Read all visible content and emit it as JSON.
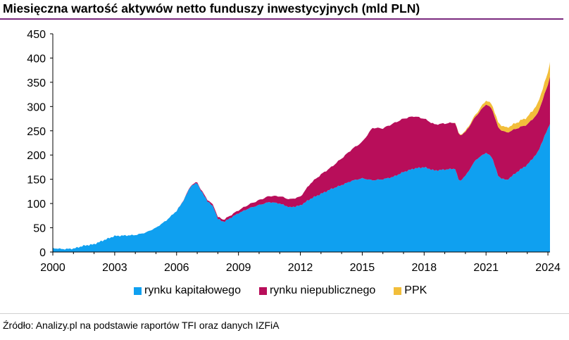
{
  "title": "Miesięczna wartość aktywów netto funduszy inwestycyjnych (mld PLN)",
  "source": "Źródło: Analizy.pl na podstawie raportów TFI oraz danych IZFiA",
  "colors": {
    "rynku_kapitalowego": "#0fa0f0",
    "rynku_niepublicznego": "#b80e5a",
    "ppk": "#f2be3a",
    "title_rule": "#7a2a7e"
  },
  "chart_data": {
    "type": "area",
    "stacked": true,
    "title": "Miesięczna wartość aktywów netto funduszy inwestycyjnych (mld PLN)",
    "xlabel": "",
    "ylabel": "",
    "xlim": [
      2000,
      2024.1
    ],
    "ylim": [
      0,
      450
    ],
    "yticks": [
      "0",
      "50",
      "100",
      "150",
      "200",
      "250",
      "300",
      "350",
      "400",
      "450"
    ],
    "xticks": [
      "2000",
      "2003",
      "2006",
      "2009",
      "2012",
      "2015",
      "2018",
      "2021",
      "2024"
    ],
    "grid": false,
    "legend_position": "bottom",
    "series": [
      {
        "name": "rynku kapitałowego",
        "color": "#0fa0f0",
        "points": [
          [
            2000,
            8
          ],
          [
            2000.5,
            6
          ],
          [
            2001,
            7
          ],
          [
            2001.5,
            13
          ],
          [
            2002,
            16
          ],
          [
            2002.5,
            25
          ],
          [
            2003,
            33
          ],
          [
            2003.5,
            34
          ],
          [
            2004,
            35
          ],
          [
            2004.5,
            40
          ],
          [
            2005,
            50
          ],
          [
            2005.5,
            65
          ],
          [
            2006,
            85
          ],
          [
            2006.25,
            100
          ],
          [
            2006.5,
            120
          ],
          [
            2006.7,
            137
          ],
          [
            2007,
            142
          ],
          [
            2007.2,
            125
          ],
          [
            2007.5,
            105
          ],
          [
            2007.8,
            92
          ],
          [
            2008,
            68
          ],
          [
            2008.3,
            62
          ],
          [
            2008.6,
            70
          ],
          [
            2009,
            80
          ],
          [
            2009.5,
            90
          ],
          [
            2010,
            97
          ],
          [
            2010.5,
            103
          ],
          [
            2011,
            100
          ],
          [
            2011.5,
            92
          ],
          [
            2012,
            96
          ],
          [
            2012.5,
            110
          ],
          [
            2013,
            120
          ],
          [
            2013.5,
            130
          ],
          [
            2014,
            138
          ],
          [
            2014.5,
            147
          ],
          [
            2015,
            152
          ],
          [
            2015.5,
            148
          ],
          [
            2016,
            150
          ],
          [
            2016.5,
            155
          ],
          [
            2017,
            165
          ],
          [
            2017.5,
            172
          ],
          [
            2018,
            175
          ],
          [
            2018.5,
            168
          ],
          [
            2019,
            170
          ],
          [
            2019.5,
            172
          ],
          [
            2019.7,
            145
          ],
          [
            2020,
            157
          ],
          [
            2020.5,
            190
          ],
          [
            2021,
            205
          ],
          [
            2021.3,
            195
          ],
          [
            2021.6,
            155
          ],
          [
            2022,
            148
          ],
          [
            2022.5,
            165
          ],
          [
            2023,
            180
          ],
          [
            2023.5,
            205
          ],
          [
            2024,
            255
          ],
          [
            2024.1,
            265
          ]
        ]
      },
      {
        "name": "rynku niepublicznego",
        "color": "#b80e5a",
        "points": [
          [
            2000,
            0
          ],
          [
            2005,
            0
          ],
          [
            2006,
            0
          ],
          [
            2007,
            2
          ],
          [
            2008,
            4
          ],
          [
            2009,
            6
          ],
          [
            2010,
            10
          ],
          [
            2011,
            15
          ],
          [
            2012,
            18
          ],
          [
            2012.5,
            32
          ],
          [
            2013,
            40
          ],
          [
            2013.5,
            45
          ],
          [
            2014,
            55
          ],
          [
            2014.5,
            65
          ],
          [
            2015,
            75
          ],
          [
            2015.5,
            108
          ],
          [
            2016,
            105
          ],
          [
            2016.5,
            110
          ],
          [
            2017,
            110
          ],
          [
            2017.5,
            108
          ],
          [
            2018,
            100
          ],
          [
            2018.5,
            95
          ],
          [
            2019,
            95
          ],
          [
            2019.5,
            95
          ],
          [
            2019.7,
            95
          ],
          [
            2020,
            90
          ],
          [
            2020.5,
            90
          ],
          [
            2021,
            100
          ],
          [
            2021.3,
            100
          ],
          [
            2021.6,
            100
          ],
          [
            2022,
            98
          ],
          [
            2022.5,
            90
          ],
          [
            2023,
            83
          ],
          [
            2023.5,
            80
          ],
          [
            2024,
            90
          ],
          [
            2024.1,
            98
          ]
        ]
      },
      {
        "name": "PPK",
        "color": "#f2be3a",
        "points": [
          [
            2000,
            0
          ],
          [
            2019.3,
            0
          ],
          [
            2019.7,
            1
          ],
          [
            2020,
            2
          ],
          [
            2020.5,
            4
          ],
          [
            2021,
            8
          ],
          [
            2021.6,
            10
          ],
          [
            2022,
            10
          ],
          [
            2022.5,
            12
          ],
          [
            2023,
            15
          ],
          [
            2023.5,
            20
          ],
          [
            2024,
            25
          ],
          [
            2024.1,
            30
          ]
        ]
      }
    ]
  }
}
